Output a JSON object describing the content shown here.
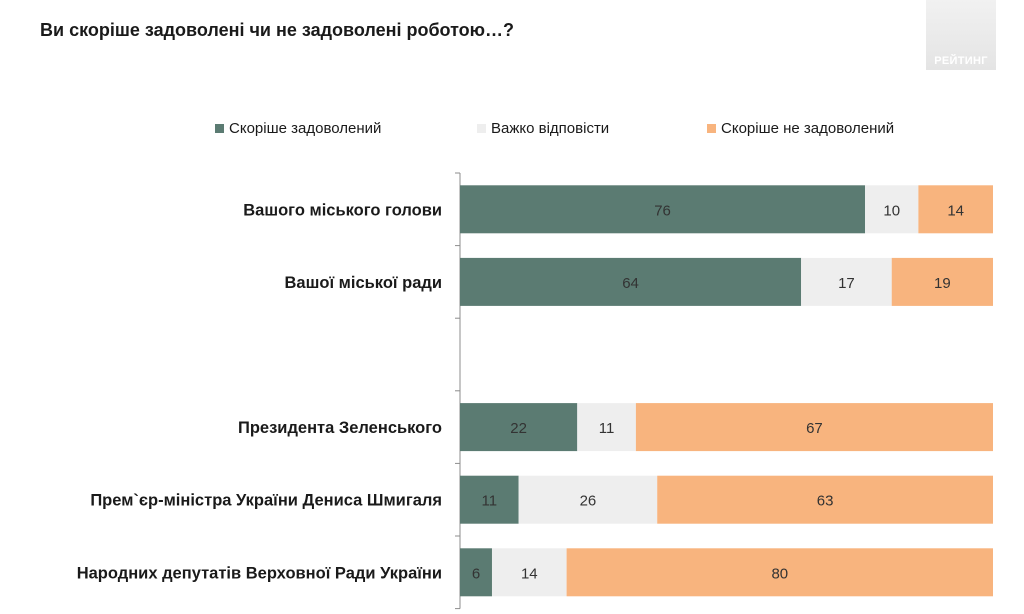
{
  "logo": {
    "text": "РЕЙТИНГ"
  },
  "chart_data": {
    "type": "bar",
    "orientation": "horizontal",
    "stacked": true,
    "title": "Ви скоріше задоволені чи не задоволені роботою…?",
    "categories": [
      "Вашого міського голови",
      "Вашої міської ради",
      "",
      "Президента Зеленського",
      "Прем`єр-міністра України Дениса Шмигаля",
      "Народних депутатів Верховної Ради України"
    ],
    "series": [
      {
        "name": "Скоріше задоволений",
        "color": "#5b7b72",
        "values": [
          76,
          64,
          null,
          22,
          11,
          6
        ]
      },
      {
        "name": "Важко відповісти",
        "color": "#eeeeee",
        "values": [
          10,
          17,
          null,
          11,
          26,
          14
        ]
      },
      {
        "name": "Скоріше не задоволений",
        "color": "#f8b47e",
        "values": [
          14,
          19,
          null,
          67,
          63,
          80
        ]
      }
    ],
    "xlim": [
      0,
      100
    ],
    "data_labels": true,
    "legend_position": "top",
    "grid": false
  }
}
